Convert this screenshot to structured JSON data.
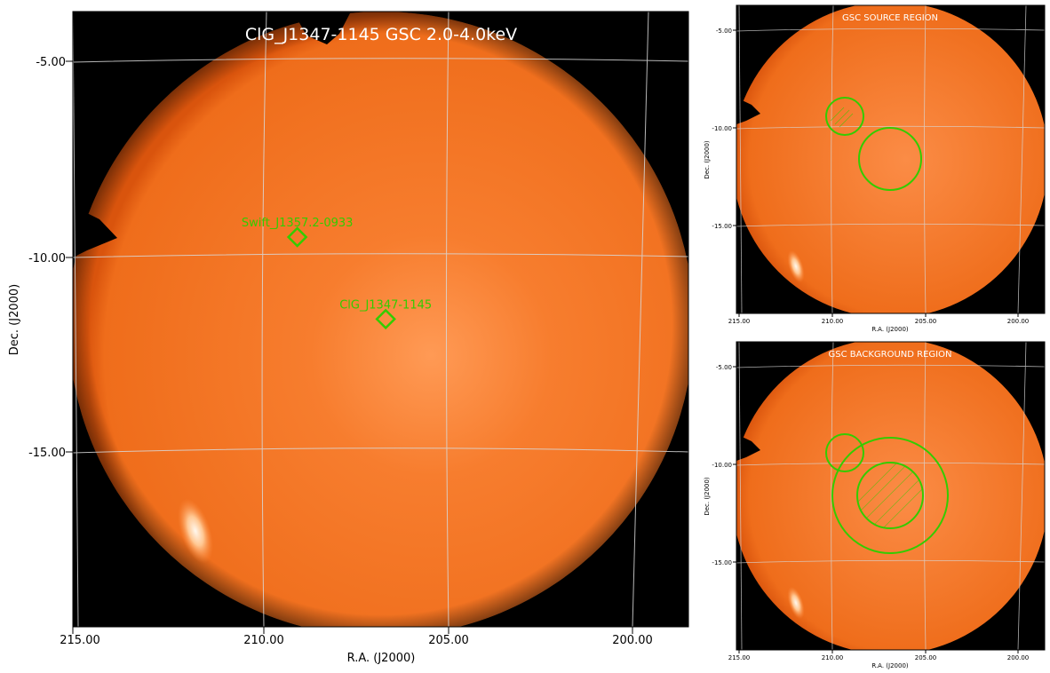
{
  "main": {
    "title": "ClG_J1347-1145 GSC 2.0-4.0keV",
    "xlabel": "R.A. (J2000)",
    "ylabel": "Dec. (J2000)",
    "x_ticks": [
      "215.00",
      "210.00",
      "205.00",
      "200.00"
    ],
    "y_ticks": [
      "-5.00",
      "-10.00",
      "-15.00"
    ],
    "sources": [
      {
        "label": "Swift_J1357.2-0933",
        "ra": 209.1,
        "dec": -9.5
      },
      {
        "label": "ClG_J1347-1145",
        "ra": 206.7,
        "dec": -11.6
      }
    ]
  },
  "source_panel": {
    "title": "GSC SOURCE REGION",
    "xlabel": "R.A. (J2000)",
    "ylabel": "Dec. (J2000)",
    "x_ticks": [
      "215.00",
      "210.00",
      "205.00",
      "200.00"
    ],
    "y_ticks": [
      "-5.00",
      "-10.00",
      "-15.00"
    ]
  },
  "background_panel": {
    "title": "GSC BACKGROUND REGION",
    "xlabel": "R.A. (J2000)",
    "ylabel": "Dec. (J2000)",
    "x_ticks": [
      "215.00",
      "210.00",
      "205.00",
      "200.00"
    ],
    "y_ticks": [
      "-5.00",
      "-10.00",
      "-15.00"
    ]
  },
  "colors": {
    "sky_background": "#000000",
    "field_orange": "#f0701e",
    "field_glow": "#ff9a55",
    "region_green": "#33cc00",
    "grid": "#d8d8d8",
    "title_text": "#ffffff"
  }
}
